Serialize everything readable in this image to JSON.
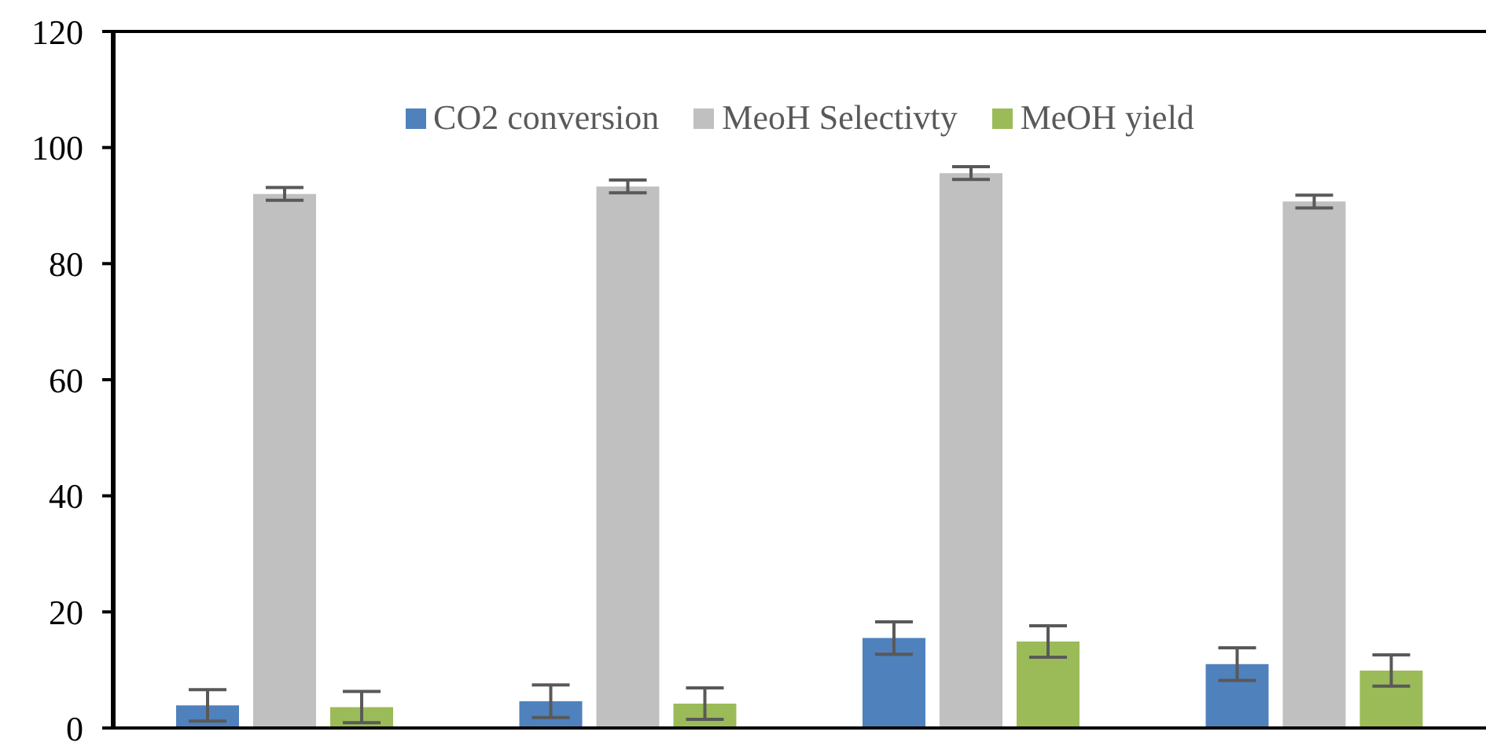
{
  "chart_data": {
    "type": "bar",
    "categories": [
      null,
      null,
      null,
      null
    ],
    "series": [
      {
        "name": "CO2 conversion",
        "color": "#4f81bd",
        "values": [
          3.9,
          4.6,
          15.5,
          11.0
        ],
        "errors": [
          2.7,
          2.8,
          2.8,
          2.8
        ]
      },
      {
        "name": "MeoH Selectivty",
        "color": "#c0c0c0",
        "values": [
          92.0,
          93.3,
          95.6,
          90.7
        ],
        "errors": [
          1.1,
          1.1,
          1.1,
          1.1
        ]
      },
      {
        "name": "MeOH yield",
        "color": "#9bbb59",
        "values": [
          3.6,
          4.2,
          14.9,
          9.9
        ],
        "errors": [
          2.7,
          2.7,
          2.7,
          2.7
        ]
      }
    ],
    "ylim": [
      0,
      120
    ],
    "yticks": [
      0,
      20,
      40,
      60,
      80,
      100,
      120
    ],
    "tick_labels": "y",
    "grid": false,
    "legend": "top"
  }
}
